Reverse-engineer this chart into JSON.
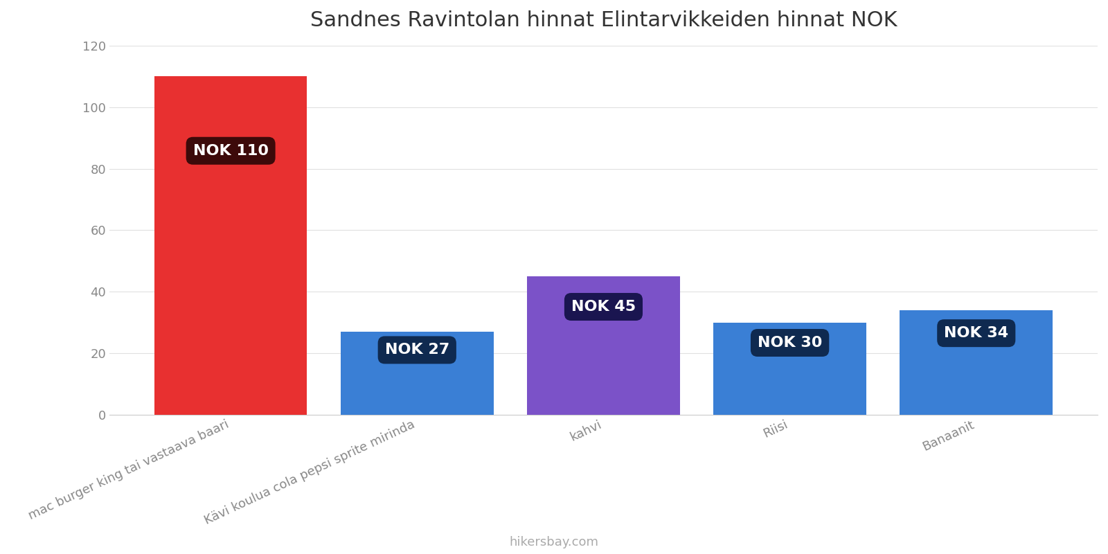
{
  "title": "Sandnes Ravintolan hinnat Elintarvikkeiden hinnat NOK",
  "categories": [
    "mac burger king tai vastaava baari",
    "Kävi koulua cola pepsi sprite mirinda",
    "kahvi",
    "Riisi",
    "Banaanit"
  ],
  "values": [
    110,
    27,
    45,
    30,
    34
  ],
  "bar_colors": [
    "#e83030",
    "#3a7fd5",
    "#7b52c8",
    "#3a7fd5",
    "#3a7fd5"
  ],
  "label_bg_colors": [
    "#3d0a0a",
    "#0f2a50",
    "#1a1550",
    "#0f2a50",
    "#0f2a50"
  ],
  "labels": [
    "NOK 110",
    "NOK 27",
    "NOK 45",
    "NOK 30",
    "NOK 34"
  ],
  "ylim": [
    0,
    120
  ],
  "yticks": [
    0,
    20,
    40,
    60,
    80,
    100,
    120
  ],
  "background_color": "#ffffff",
  "title_fontsize": 22,
  "tick_label_fontsize": 13,
  "watermark": "hikersbay.com"
}
